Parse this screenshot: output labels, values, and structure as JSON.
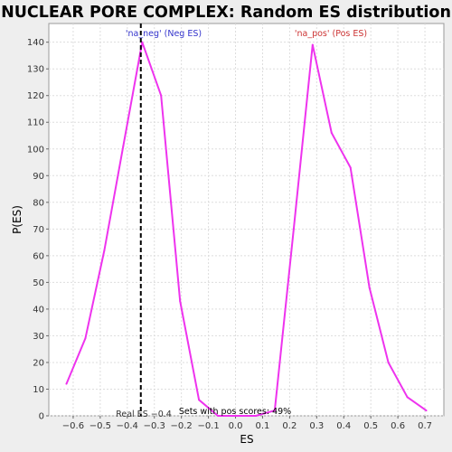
{
  "chart_data": {
    "type": "line",
    "title": "NUCLEAR PORE COMPLEX: Random ES distribution",
    "xlabel": "ES",
    "ylabel": "P(ES)",
    "xlim": [
      -0.69,
      0.77
    ],
    "ylim": [
      0,
      147
    ],
    "grid": true,
    "x_ticks": [
      -0.6,
      -0.5,
      -0.4,
      -0.3,
      -0.2,
      -0.1,
      0.0,
      0.1,
      0.2,
      0.3,
      0.4,
      0.5,
      0.6,
      0.7
    ],
    "x_tick_labels": [
      "−0.6",
      "−0.5",
      "−0.4",
      "−0.3",
      "−0.2",
      "−0.1",
      "0.0",
      "0.1",
      "0.2",
      "0.3",
      "0.4",
      "0.5",
      "0.6",
      "0.7"
    ],
    "y_ticks": [
      0,
      10,
      20,
      30,
      40,
      50,
      60,
      70,
      80,
      90,
      100,
      110,
      120,
      130,
      140
    ],
    "y_tick_labels": [
      "0",
      "10",
      "20",
      "30",
      "40",
      "50",
      "60",
      "70",
      "80",
      "90",
      "100",
      "110",
      "120",
      "130",
      "140"
    ],
    "series": [
      {
        "color": "#ee33ee",
        "x": [
          -0.625,
          -0.555,
          -0.485,
          -0.415,
          -0.345,
          -0.275,
          -0.205,
          -0.135,
          -0.065,
          0.005,
          0.075,
          0.145,
          0.215,
          0.285,
          0.355,
          0.425,
          0.495,
          0.565,
          0.635,
          0.705
        ],
        "y": [
          12,
          29,
          62,
          101,
          140,
          120,
          43,
          6,
          0,
          0,
          0,
          2,
          70,
          139,
          106,
          93,
          48,
          20,
          7,
          2
        ]
      }
    ],
    "real_es": {
      "x": -0.35,
      "label": "Real ES −0.4",
      "color": "#000000"
    },
    "annotations": {
      "neg": {
        "text": "'na_neg' (Neg ES)",
        "color": "#3333cc"
      },
      "pos": {
        "text": "'na_pos' (Pos ES)",
        "color": "#cc3333"
      },
      "sets": {
        "text": "Sets with pos scores: 49%",
        "color": "#000000"
      }
    },
    "colors": {
      "background": "#eeeeee",
      "plot_background": "#ffffff",
      "grid": "#dddddd"
    }
  }
}
